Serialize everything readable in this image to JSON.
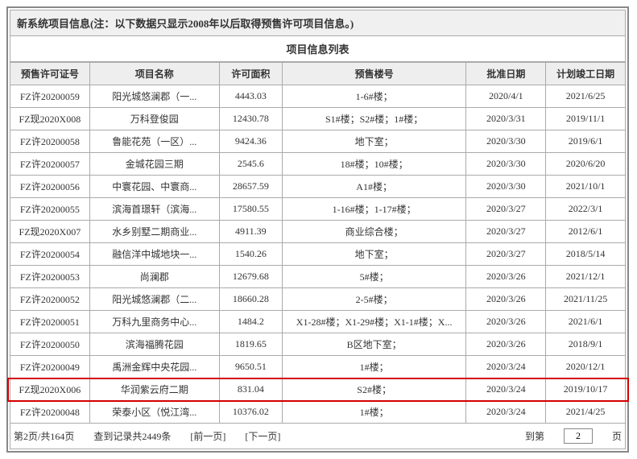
{
  "titleBar": "新系统项目信息(注：以下数据只显示2008年以后取得预售许可项目信息。)",
  "listHeader": "项目信息列表",
  "columns": [
    "预售许可证号",
    "项目名称",
    "许可面积",
    "预售楼号",
    "批准日期",
    "计划竣工日期"
  ],
  "rows": [
    {
      "permit": "FZ许20200059",
      "name": "阳光城悠澜郡（一...",
      "area": "4443.03",
      "bldg": "1-6#楼；",
      "approve": "2020/4/1",
      "plan": "2021/6/25",
      "hl": false
    },
    {
      "permit": "FZ现2020X008",
      "name": "万科登俊园",
      "area": "12430.78",
      "bldg": "S1#楼；S2#楼；1#楼；",
      "approve": "2020/3/31",
      "plan": "2019/11/1",
      "hl": false
    },
    {
      "permit": "FZ许20200058",
      "name": "鲁能花苑（一区）...",
      "area": "9424.36",
      "bldg": "地下室；",
      "approve": "2020/3/30",
      "plan": "2019/6/1",
      "hl": false
    },
    {
      "permit": "FZ许20200057",
      "name": "金城花园三期",
      "area": "2545.6",
      "bldg": "18#楼；10#楼；",
      "approve": "2020/3/30",
      "plan": "2020/6/20",
      "hl": false
    },
    {
      "permit": "FZ许20200056",
      "name": "中寰花园、中寰商...",
      "area": "28657.59",
      "bldg": "A1#楼；",
      "approve": "2020/3/30",
      "plan": "2021/10/1",
      "hl": false
    },
    {
      "permit": "FZ许20200055",
      "name": "滨海首璟轩（滨海...",
      "area": "17580.55",
      "bldg": "1-16#楼；1-17#楼；",
      "approve": "2020/3/27",
      "plan": "2022/3/1",
      "hl": false
    },
    {
      "permit": "FZ现2020X007",
      "name": "水乡别墅二期商业...",
      "area": "4911.39",
      "bldg": "商业综合楼；",
      "approve": "2020/3/27",
      "plan": "2012/6/1",
      "hl": false
    },
    {
      "permit": "FZ许20200054",
      "name": "融信洋中城地块一...",
      "area": "1540.26",
      "bldg": "地下室；",
      "approve": "2020/3/27",
      "plan": "2018/5/14",
      "hl": false
    },
    {
      "permit": "FZ许20200053",
      "name": "尚澜郡",
      "area": "12679.68",
      "bldg": "5#楼；",
      "approve": "2020/3/26",
      "plan": "2021/12/1",
      "hl": false
    },
    {
      "permit": "FZ许20200052",
      "name": "阳光城悠澜郡（二...",
      "area": "18660.28",
      "bldg": "2-5#楼；",
      "approve": "2020/3/26",
      "plan": "2021/11/25",
      "hl": false
    },
    {
      "permit": "FZ许20200051",
      "name": "万科九里商务中心...",
      "area": "1484.2",
      "bldg": "X1-28#楼；X1-29#楼；X1-1#楼；X...",
      "approve": "2020/3/26",
      "plan": "2021/6/1",
      "hl": false
    },
    {
      "permit": "FZ许20200050",
      "name": "滨海福腾花园",
      "area": "1819.65",
      "bldg": "B区地下室；",
      "approve": "2020/3/26",
      "plan": "2018/9/1",
      "hl": false
    },
    {
      "permit": "FZ许20200049",
      "name": "禹洲金辉中央花园...",
      "area": "9650.51",
      "bldg": "1#楼；",
      "approve": "2020/3/24",
      "plan": "2020/12/1",
      "hl": false
    },
    {
      "permit": "FZ现2020X006",
      "name": "华润紫云府二期",
      "area": "831.04",
      "bldg": "S2#楼；",
      "approve": "2020/3/24",
      "plan": "2019/10/17",
      "hl": true
    },
    {
      "permit": "FZ许20200048",
      "name": "荣泰小区（悦江湾...",
      "area": "10376.02",
      "bldg": "1#楼；",
      "approve": "2020/3/24",
      "plan": "2021/4/25",
      "hl": false
    }
  ],
  "pager": {
    "pageInfo": "第2页/共164页",
    "recordInfo": "查到记录共2449条",
    "prev": "[前一页]",
    "next": "[下一页]",
    "gotoPrefix": "到第",
    "gotoSuffix": "页",
    "currentPage": "2"
  },
  "style": {
    "highlightBorder": "#d40000",
    "gridBorder": "#aaaaaa",
    "headerBg": "#eeeeee",
    "titleBg": "#f0f0f0"
  }
}
